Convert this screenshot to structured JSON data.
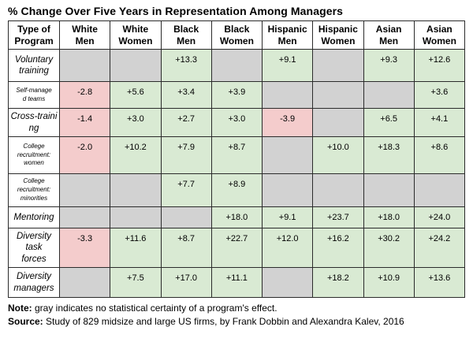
{
  "title": "% Change Over Five Years in Representation Among Managers",
  "colors": {
    "positive_green": "#d9ead3",
    "negative_pink": "#f4cccc",
    "no_certainty_gray": "#d2d2d2"
  },
  "chart_data": {
    "type": "table",
    "title": "% Change Over Five Years in Representation Among Managers",
    "columns": [
      "Type of\nProgram",
      "White\nMen",
      "White\nWomen",
      "Black\nMen",
      "Black\nWomen",
      "Hispanic\nMen",
      "Hispanic\nWomen",
      "Asian\nMen",
      "Asian\nWomen"
    ],
    "rows": [
      {
        "label": "Voluntary\ntraining",
        "values": [
          "",
          "",
          "+13.3",
          "",
          "+9.1",
          "",
          "+9.3",
          "+12.6"
        ]
      },
      {
        "label": "Self-manage\nd teams",
        "values": [
          "-2.8",
          "+5.6",
          "+3.4",
          "+3.9",
          "",
          "",
          "",
          "+3.6"
        ]
      },
      {
        "label": "Cross-traini\nng",
        "values": [
          "-1.4",
          "+3.0",
          "+2.7",
          "+3.0",
          "-3.9",
          "",
          "+6.5",
          "+4.1"
        ]
      },
      {
        "label": "College\nrecruitment:\nwomen",
        "values": [
          "-2.0",
          "+10.2",
          "+7.9",
          "+8.7",
          "",
          "+10.0",
          "+18.3",
          "+8.6"
        ]
      },
      {
        "label": "College\nrecruitment:\nminorities",
        "values": [
          "",
          "",
          "+7.7",
          "+8.9",
          "",
          "",
          "",
          ""
        ]
      },
      {
        "label": "Mentoring",
        "values": [
          "",
          "",
          "",
          "+18.0",
          "+9.1",
          "+23.7",
          "+18.0",
          "+24.0"
        ]
      },
      {
        "label": "Diversity\ntask\nforces",
        "values": [
          "-3.3",
          "+11.6",
          "+8.7",
          "+22.7",
          "+12.0",
          "+16.2",
          "+30.2",
          "+24.2"
        ]
      },
      {
        "label": "Diversity\nmanagers",
        "values": [
          "",
          "+7.5",
          "+17.0",
          "+11.1",
          "",
          "+18.2",
          "+10.9",
          "+13.6"
        ]
      }
    ],
    "cell_color_rule": "positive values green, negative values pink, blank cells gray"
  },
  "footnotes": {
    "note_label": "Note:",
    "note_text": " gray indicates no statistical certainty of a program's effect.",
    "source_label": "Source:",
    "source_text": " Study of 829 midsize and large US firms, by Frank Dobbin and Alexandra Kalev, 2016"
  }
}
